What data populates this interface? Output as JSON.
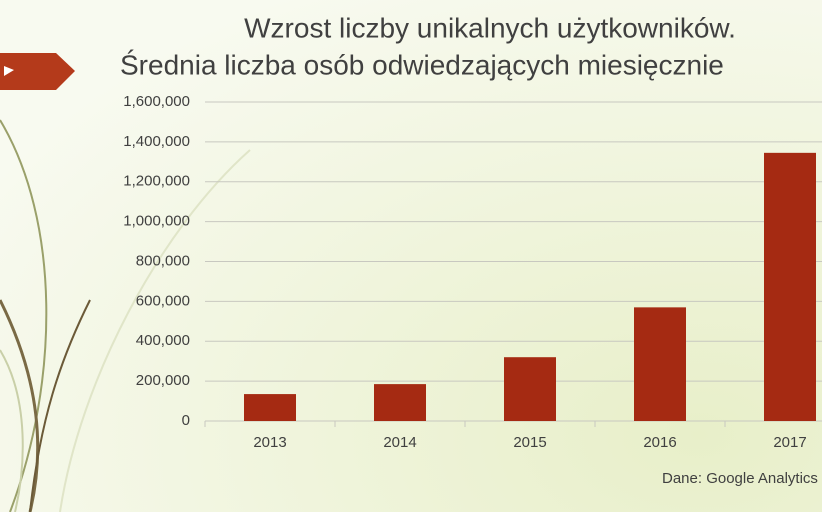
{
  "chart_data": {
    "type": "bar",
    "title": "Wzrost liczby unikalnych użytkowników.",
    "subtitle": "Średnia liczba osób odwiedzających miesięcznie",
    "source": "Dane: Google Analytics",
    "categories": [
      "2013",
      "2014",
      "2015",
      "2016",
      "2017"
    ],
    "values": [
      135000,
      185000,
      320000,
      570000,
      1345000
    ],
    "color": "#a52a12",
    "ylim": [
      0,
      1600000
    ],
    "yticks": [
      0,
      {
        "value": 200000,
        "label": "200,000"
      },
      {
        "value": 400000,
        "label": "400,000"
      },
      {
        "value": 600000,
        "label": "600,000"
      },
      {
        "value": 800000,
        "label": "800,000"
      },
      {
        "value": 1000000,
        "label": "1,000,000"
      },
      {
        "value": 1200000,
        "label": "1,200,000"
      },
      {
        "value": 1400000,
        "label": "1,400,000"
      },
      {
        "value": 1600000,
        "label": "1,600,000"
      }
    ],
    "grid": true
  }
}
